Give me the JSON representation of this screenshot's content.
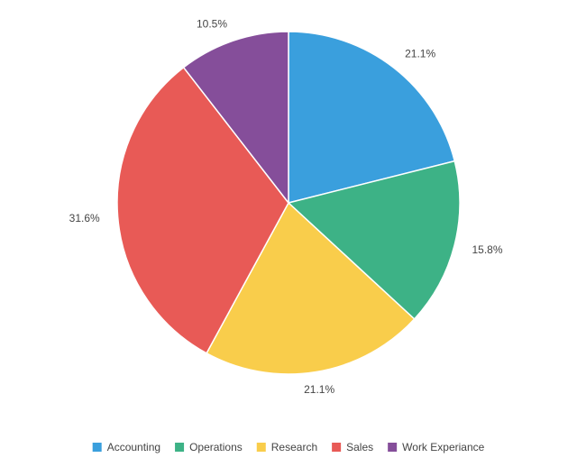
{
  "chart_data": {
    "type": "pie",
    "categories": [
      "Accounting",
      "Operations",
      "Research",
      "Sales",
      "Work Experiance"
    ],
    "values": [
      21.1,
      15.8,
      21.1,
      31.6,
      10.5
    ],
    "value_labels": [
      "21.1%",
      "15.8%",
      "21.1%",
      "31.6%",
      "10.5%"
    ],
    "colors": [
      "#3a9fdd",
      "#3db286",
      "#f9cd4b",
      "#e85a56",
      "#854e9a"
    ],
    "title": "",
    "legend_position": "bottom",
    "start_angle": "top",
    "direction": "clockwise"
  }
}
